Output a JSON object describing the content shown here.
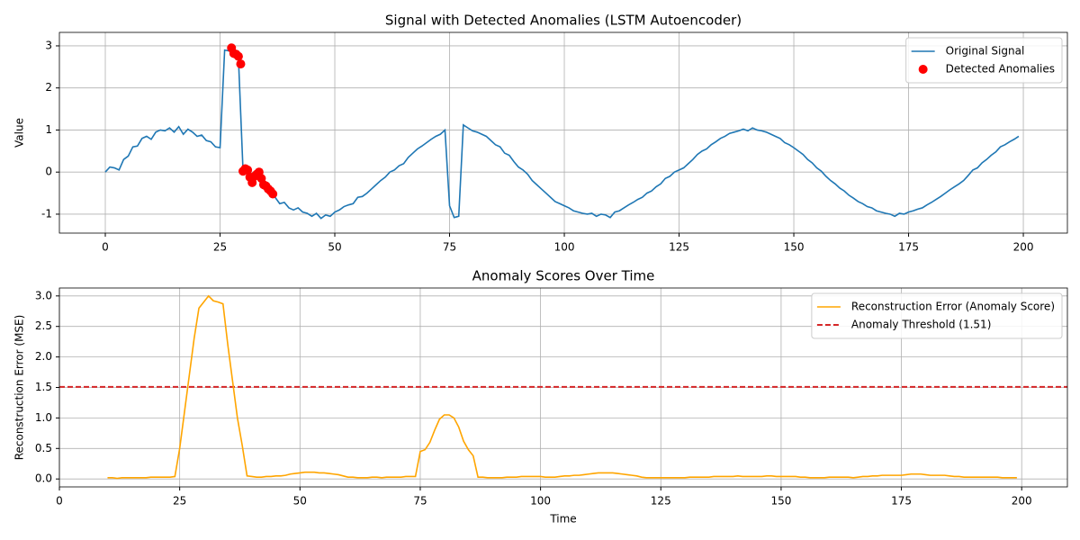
{
  "chart_data": [
    {
      "type": "line",
      "title": "Signal with Detected Anomalies (LSTM Autoencoder)",
      "ylabel": "Value",
      "x": [
        0,
        1,
        2,
        3,
        4,
        5,
        6,
        7,
        8,
        9,
        10,
        11,
        12,
        13,
        14,
        15,
        16,
        17,
        18,
        19,
        20,
        21,
        22,
        23,
        24,
        25,
        26,
        27,
        28,
        29,
        30,
        31,
        32,
        33,
        34,
        35,
        36,
        37,
        38,
        39,
        40,
        41,
        42,
        43,
        44,
        45,
        46,
        47,
        48,
        49,
        50,
        51,
        52,
        53,
        54,
        55,
        56,
        57,
        58,
        59,
        60,
        61,
        62,
        63,
        64,
        65,
        66,
        67,
        68,
        69,
        70,
        71,
        72,
        73,
        74,
        75,
        76,
        77,
        78,
        79,
        80,
        81,
        82,
        83,
        84,
        85,
        86,
        87,
        88,
        89,
        90,
        91,
        92,
        93,
        94,
        95,
        96,
        97,
        98,
        99,
        100,
        101,
        102,
        103,
        104,
        105,
        106,
        107,
        108,
        109,
        110,
        111,
        112,
        113,
        114,
        115,
        116,
        117,
        118,
        119,
        120,
        121,
        122,
        123,
        124,
        125,
        126,
        127,
        128,
        129,
        130,
        131,
        132,
        133,
        134,
        135,
        136,
        137,
        138,
        139,
        140,
        141,
        142,
        143,
        144,
        145,
        146,
        147,
        148,
        149,
        150,
        151,
        152,
        153,
        154,
        155,
        156,
        157,
        158,
        159,
        160,
        161,
        162,
        163,
        164,
        165,
        166,
        167,
        168,
        169,
        170,
        171,
        172,
        173,
        174,
        175,
        176,
        177,
        178,
        179,
        180,
        181,
        182,
        183,
        184,
        185,
        186,
        187,
        188,
        189,
        190,
        191,
        192,
        193,
        194,
        195,
        196,
        197,
        198,
        199
      ],
      "series": [
        {
          "name": "Original Signal",
          "type": "line",
          "color": "#1f77b4",
          "values": [
            0.0,
            0.12,
            0.1,
            0.05,
            0.3,
            0.38,
            0.6,
            0.62,
            0.8,
            0.85,
            0.78,
            0.95,
            1.0,
            0.98,
            1.05,
            0.95,
            1.08,
            0.9,
            1.02,
            0.95,
            0.85,
            0.88,
            0.75,
            0.72,
            0.6,
            0.58,
            2.9,
            2.88,
            2.8,
            2.72,
            0.05,
            0.05,
            -0.2,
            -0.1,
            -0.2,
            -0.35,
            -0.48,
            -0.6,
            -0.75,
            -0.72,
            -0.85,
            -0.9,
            -0.85,
            -0.95,
            -0.98,
            -1.05,
            -0.98,
            -1.1,
            -1.02,
            -1.05,
            -0.95,
            -0.9,
            -0.82,
            -0.78,
            -0.75,
            -0.6,
            -0.58,
            -0.5,
            -0.4,
            -0.3,
            -0.2,
            -0.12,
            0.0,
            0.05,
            0.15,
            0.2,
            0.35,
            0.45,
            0.55,
            0.62,
            0.7,
            0.78,
            0.85,
            0.9,
            1.0,
            -0.8,
            -1.08,
            -1.05,
            1.12,
            1.05,
            0.98,
            0.95,
            0.9,
            0.85,
            0.75,
            0.65,
            0.6,
            0.45,
            0.4,
            0.25,
            0.12,
            0.05,
            -0.05,
            -0.2,
            -0.3,
            -0.4,
            -0.5,
            -0.6,
            -0.7,
            -0.75,
            -0.8,
            -0.85,
            -0.92,
            -0.95,
            -0.98,
            -1.0,
            -0.98,
            -1.05,
            -1.0,
            -1.02,
            -1.08,
            -0.95,
            -0.92,
            -0.85,
            -0.78,
            -0.72,
            -0.65,
            -0.6,
            -0.5,
            -0.45,
            -0.35,
            -0.28,
            -0.15,
            -0.1,
            0.0,
            0.05,
            0.1,
            0.2,
            0.3,
            0.42,
            0.5,
            0.55,
            0.65,
            0.72,
            0.8,
            0.85,
            0.92,
            0.95,
            0.98,
            1.02,
            0.98,
            1.05,
            1.0,
            0.98,
            0.95,
            0.9,
            0.85,
            0.8,
            0.7,
            0.65,
            0.58,
            0.5,
            0.42,
            0.3,
            0.22,
            0.1,
            0.02,
            -0.1,
            -0.2,
            -0.28,
            -0.38,
            -0.45,
            -0.55,
            -0.62,
            -0.7,
            -0.75,
            -0.82,
            -0.85,
            -0.92,
            -0.95,
            -0.98,
            -1.0,
            -1.05,
            -0.98,
            -1.0,
            -0.95,
            -0.92,
            -0.88,
            -0.85,
            -0.78,
            -0.72,
            -0.65,
            -0.58,
            -0.5,
            -0.42,
            -0.35,
            -0.28,
            -0.2,
            -0.08,
            0.05,
            0.1,
            0.22,
            0.3,
            0.4,
            0.48,
            0.6,
            0.65,
            0.72,
            0.78,
            0.85
          ]
        },
        {
          "name": "Detected Anomalies",
          "type": "scatter",
          "color": "#ff0000",
          "x": [
            27.5,
            28,
            28.5,
            29,
            29.5,
            30,
            30.5,
            31,
            31.5,
            32,
            32.5,
            33,
            33.5,
            34,
            34.5,
            35,
            35.5,
            36,
            36.5
          ],
          "values": [
            2.95,
            2.82,
            2.8,
            2.75,
            2.57,
            0.02,
            0.08,
            0.05,
            -0.12,
            -0.25,
            -0.1,
            -0.05,
            0.0,
            -0.15,
            -0.3,
            -0.33,
            -0.4,
            -0.45,
            -0.52
          ]
        }
      ],
      "xlim": [
        -10,
        209.6
      ],
      "ylim": [
        -1.45,
        3.32
      ],
      "xticks": [
        0,
        25,
        50,
        75,
        100,
        125,
        150,
        175,
        200
      ],
      "yticks": [
        -1,
        0,
        1,
        2,
        3
      ],
      "grid": true,
      "legend": "upper right"
    },
    {
      "type": "line",
      "title": "Anomaly Scores Over Time",
      "xlabel": "Time",
      "ylabel": "Reconstruction Error (MSE)",
      "x": [
        10,
        11,
        12,
        13,
        14,
        15,
        16,
        17,
        18,
        19,
        20,
        21,
        22,
        23,
        24,
        25,
        26,
        27,
        28,
        29,
        30,
        31,
        32,
        33,
        34,
        35,
        36,
        37,
        38,
        39,
        40,
        41,
        42,
        43,
        44,
        45,
        46,
        47,
        48,
        49,
        50,
        51,
        52,
        53,
        54,
        55,
        56,
        57,
        58,
        59,
        60,
        61,
        62,
        63,
        64,
        65,
        66,
        67,
        68,
        69,
        70,
        71,
        72,
        73,
        74,
        75,
        76,
        77,
        78,
        79,
        80,
        81,
        82,
        83,
        84,
        85,
        86,
        87,
        88,
        89,
        90,
        91,
        92,
        93,
        94,
        95,
        96,
        97,
        98,
        99,
        100,
        101,
        102,
        103,
        104,
        105,
        106,
        107,
        108,
        109,
        110,
        111,
        112,
        113,
        114,
        115,
        116,
        117,
        118,
        119,
        120,
        121,
        122,
        123,
        124,
        125,
        126,
        127,
        128,
        129,
        130,
        131,
        132,
        133,
        134,
        135,
        136,
        137,
        138,
        139,
        140,
        141,
        142,
        143,
        144,
        145,
        146,
        147,
        148,
        149,
        150,
        151,
        152,
        153,
        154,
        155,
        156,
        157,
        158,
        159,
        160,
        161,
        162,
        163,
        164,
        165,
        166,
        167,
        168,
        169,
        170,
        171,
        172,
        173,
        174,
        175,
        176,
        177,
        178,
        179,
        180,
        181,
        182,
        183,
        184,
        185,
        186,
        187,
        188,
        189,
        190,
        191,
        192,
        193,
        194,
        195,
        196,
        197,
        198,
        199
      ],
      "series": [
        {
          "name": "Reconstruction Error (Anomaly Score)",
          "type": "line",
          "color": "#ffa500",
          "values": [
            0.02,
            0.02,
            0.01,
            0.02,
            0.02,
            0.02,
            0.02,
            0.02,
            0.02,
            0.03,
            0.03,
            0.03,
            0.03,
            0.03,
            0.04,
            0.5,
            1.1,
            1.7,
            2.3,
            2.8,
            2.9,
            3.0,
            2.92,
            2.9,
            2.87,
            2.2,
            1.6,
            1.0,
            0.55,
            0.05,
            0.04,
            0.03,
            0.03,
            0.04,
            0.04,
            0.05,
            0.05,
            0.06,
            0.08,
            0.09,
            0.1,
            0.11,
            0.11,
            0.11,
            0.1,
            0.1,
            0.09,
            0.08,
            0.07,
            0.05,
            0.03,
            0.03,
            0.02,
            0.02,
            0.02,
            0.03,
            0.03,
            0.02,
            0.03,
            0.03,
            0.03,
            0.03,
            0.04,
            0.04,
            0.04,
            0.45,
            0.48,
            0.6,
            0.8,
            0.98,
            1.05,
            1.05,
            1.0,
            0.85,
            0.62,
            0.48,
            0.38,
            0.03,
            0.03,
            0.02,
            0.02,
            0.02,
            0.02,
            0.03,
            0.03,
            0.03,
            0.04,
            0.04,
            0.04,
            0.04,
            0.04,
            0.03,
            0.03,
            0.03,
            0.04,
            0.05,
            0.05,
            0.06,
            0.06,
            0.07,
            0.08,
            0.09,
            0.1,
            0.1,
            0.1,
            0.1,
            0.09,
            0.08,
            0.07,
            0.06,
            0.05,
            0.03,
            0.02,
            0.02,
            0.02,
            0.02,
            0.02,
            0.02,
            0.02,
            0.02,
            0.02,
            0.03,
            0.03,
            0.03,
            0.03,
            0.03,
            0.04,
            0.04,
            0.04,
            0.04,
            0.04,
            0.05,
            0.04,
            0.04,
            0.04,
            0.04,
            0.04,
            0.05,
            0.05,
            0.04,
            0.04,
            0.04,
            0.04,
            0.04,
            0.03,
            0.03,
            0.02,
            0.02,
            0.02,
            0.02,
            0.03,
            0.03,
            0.03,
            0.03,
            0.03,
            0.02,
            0.03,
            0.04,
            0.04,
            0.05,
            0.05,
            0.06,
            0.06,
            0.06,
            0.06,
            0.06,
            0.07,
            0.08,
            0.08,
            0.08,
            0.07,
            0.06,
            0.06,
            0.06,
            0.06,
            0.05,
            0.04,
            0.04,
            0.03,
            0.03,
            0.03,
            0.03,
            0.03,
            0.03,
            0.03,
            0.03,
            0.02,
            0.02,
            0.02,
            0.02
          ]
        }
      ],
      "threshold": {
        "name": "Anomaly Threshold (1.51)",
        "value": 1.51,
        "color": "#d62728"
      },
      "xlim": [
        0,
        209.5
      ],
      "ylim": [
        -0.13,
        3.13
      ],
      "xticks": [
        0,
        25,
        50,
        75,
        100,
        125,
        150,
        175,
        200
      ],
      "yticks": [
        {
          "value": 0,
          "label": "0.0"
        },
        0.5,
        {
          "value": 1,
          "label": "1.0"
        },
        1.5,
        {
          "value": 2,
          "label": "2.0"
        },
        2.5,
        {
          "value": 3,
          "label": "3.0"
        }
      ],
      "grid": true,
      "legend": "upper right"
    }
  ]
}
